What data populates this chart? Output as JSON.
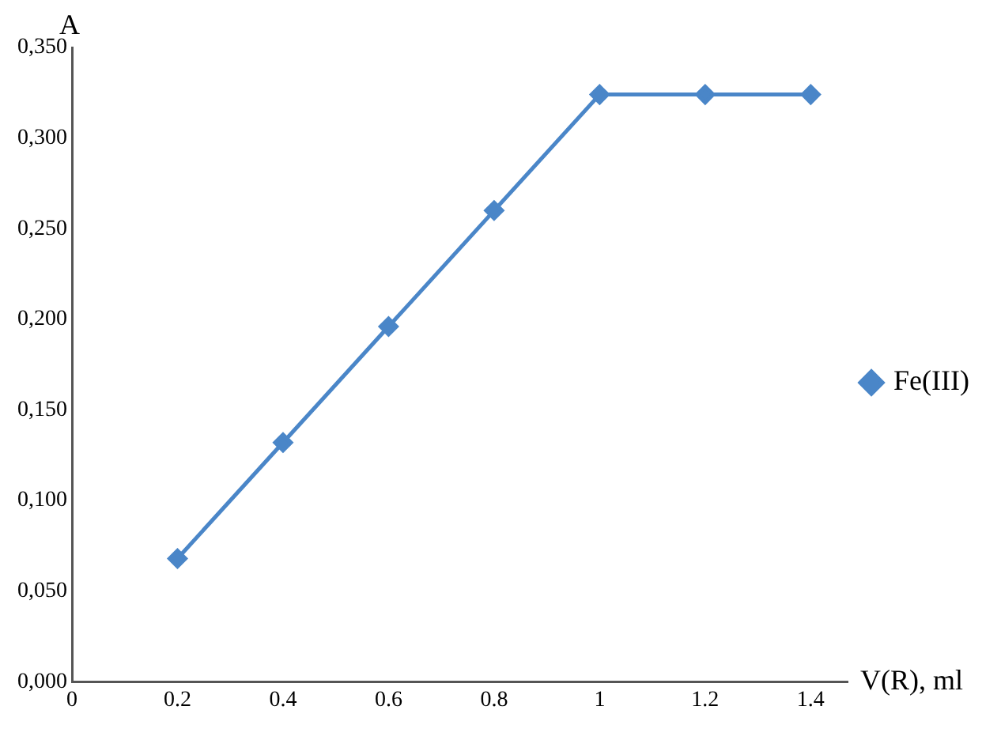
{
  "chart_data": {
    "type": "line",
    "xlabel": "V(R), ml",
    "ylabel": "A",
    "x": [
      0.2,
      0.4,
      0.6,
      0.8,
      1,
      1.2,
      1.4
    ],
    "series": [
      {
        "name": "Fe(III)",
        "color": "#4a86c8",
        "values": [
          0.068,
          0.132,
          0.196,
          0.26,
          0.324,
          0.324,
          0.324
        ]
      }
    ],
    "xlim": [
      0,
      1.47
    ],
    "xticks": [
      0,
      0.2,
      0.4,
      0.6,
      0.8,
      1,
      1.2,
      1.4
    ],
    "ylim": [
      0,
      0.35
    ],
    "yticks": [
      {
        "value": 0,
        "label": "0,000"
      },
      {
        "value": 0.05,
        "label": "0,050"
      },
      {
        "value": 0.1,
        "label": "0,100"
      },
      {
        "value": 0.15,
        "label": "0,150"
      },
      {
        "value": 0.2,
        "label": "0,200"
      },
      {
        "value": 0.25,
        "label": "0,250"
      },
      {
        "value": 0.3,
        "label": "0,300"
      },
      {
        "value": 0.35,
        "label": "0,350"
      }
    ],
    "grid": false,
    "legend": "right",
    "marker": "diamond",
    "line_style": "solid"
  }
}
